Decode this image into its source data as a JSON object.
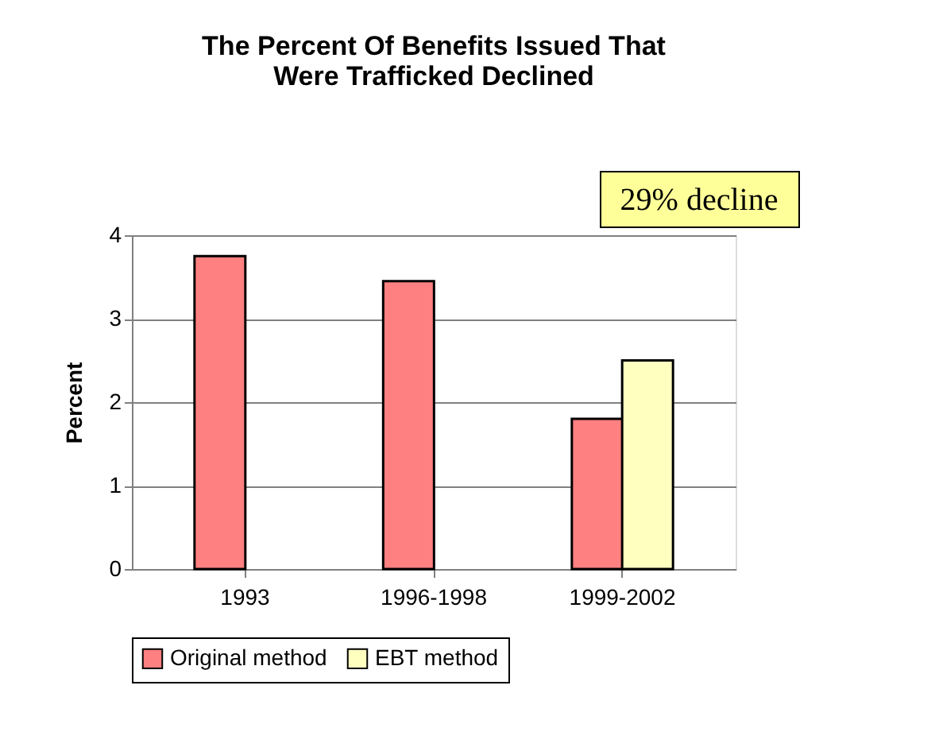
{
  "chart_data": {
    "type": "bar",
    "title": [
      "The Percent Of Benefits Issued That",
      "Were Trafficked Declined"
    ],
    "ylabel": "Percent",
    "categories": [
      "1993",
      "1996-1998",
      "1999-2002"
    ],
    "series": [
      {
        "name": "Original method",
        "color": "#ff8080",
        "values": [
          3.75,
          3.45,
          1.8
        ]
      },
      {
        "name": "EBT method",
        "color": "#ffffc0",
        "values": [
          null,
          null,
          2.5
        ]
      }
    ],
    "ylim": [
      0,
      4
    ],
    "yticks": [
      0,
      1,
      2,
      3,
      4
    ],
    "grid": "y",
    "legend": "bottom",
    "annotations": [
      "29% decline"
    ]
  }
}
